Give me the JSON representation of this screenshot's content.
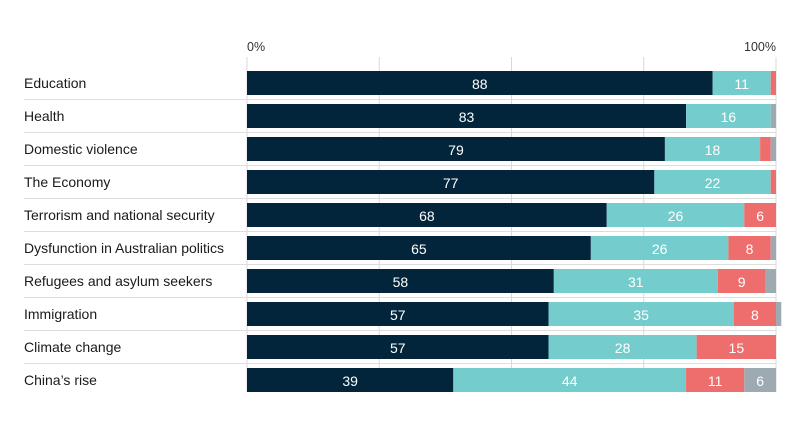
{
  "chart_data": {
    "type": "bar",
    "orientation": "horizontal",
    "stacked": true,
    "xlim": [
      0,
      100
    ],
    "tick_labels": [
      "0%",
      "100%"
    ],
    "categories": [
      "Education",
      "Health",
      "Domestic violence",
      "The Economy",
      "Terrorism and national security",
      "Dysfunction in Australian politics",
      "Refugees and asylum seekers",
      "Immigration",
      "Climate change",
      "China’s rise"
    ],
    "series": [
      {
        "name": "series-1",
        "color": "#02253b",
        "values": [
          88,
          83,
          79,
          77,
          68,
          65,
          58,
          57,
          57,
          39
        ],
        "labels": [
          "88",
          "83",
          "79",
          "77",
          "68",
          "65",
          "58",
          "57",
          "57",
          "39"
        ]
      },
      {
        "name": "series-2",
        "color": "#75cccc",
        "values": [
          11,
          16,
          18,
          22,
          26,
          26,
          31,
          35,
          28,
          44
        ],
        "labels": [
          "11",
          "16",
          "18",
          "22",
          "26",
          "26",
          "31",
          "35",
          "28",
          "44"
        ]
      },
      {
        "name": "series-3",
        "color": "#ee6d6d",
        "values": [
          1,
          0,
          2,
          1,
          6,
          8,
          9,
          8,
          15,
          11
        ],
        "labels": [
          "",
          "",
          "",
          "",
          "6",
          "8",
          "9",
          "8",
          "15",
          "11"
        ]
      },
      {
        "name": "series-4",
        "color": "#9eaab1",
        "values": [
          0,
          1,
          1,
          0,
          0,
          1,
          2,
          1,
          0,
          6
        ],
        "labels": [
          "",
          "",
          "",
          "",
          "",
          "",
          "",
          "",
          "",
          "6"
        ]
      }
    ]
  }
}
